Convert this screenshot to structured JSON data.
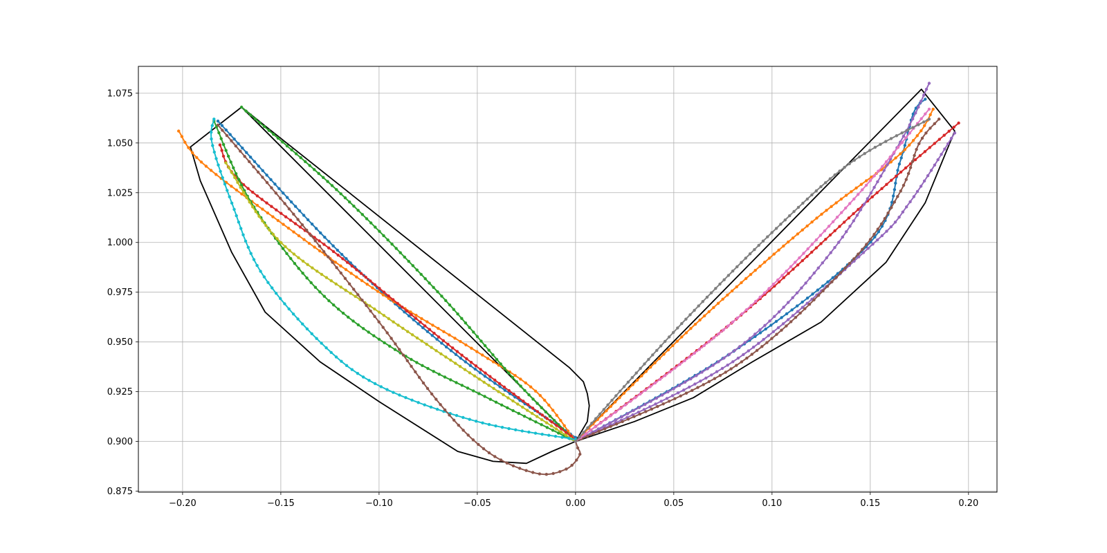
{
  "chart_data": {
    "type": "line",
    "title": "",
    "xlabel": "",
    "ylabel": "",
    "xlim": [
      -0.2225,
      0.2145
    ],
    "ylim": [
      0.8745,
      1.0885
    ],
    "grid": true,
    "legend": "none",
    "x_ticks": [
      -0.2,
      -0.15,
      -0.1,
      -0.05,
      0.0,
      0.05,
      0.1,
      0.15,
      0.2
    ],
    "x_tick_labels": [
      "−0.20",
      "−0.15",
      "−0.10",
      "−0.05",
      "0.00",
      "0.05",
      "0.10",
      "0.15",
      "0.20"
    ],
    "y_ticks": [
      0.875,
      0.9,
      0.925,
      0.95,
      0.975,
      1.0,
      1.025,
      1.05,
      1.075
    ],
    "y_tick_labels": [
      "0.875",
      "0.900",
      "0.925",
      "0.950",
      "0.975",
      "1.000",
      "1.025",
      "1.050",
      "1.075"
    ],
    "envelopes": [
      {
        "color": "#000000",
        "points": [
          [
            0.0,
            0.9
          ],
          [
            -0.17,
            1.068
          ],
          [
            -0.196,
            1.048
          ],
          [
            -0.191,
            1.031
          ],
          [
            -0.175,
            0.995
          ],
          [
            -0.158,
            0.965
          ],
          [
            -0.13,
            0.94
          ],
          [
            -0.1,
            0.92
          ],
          [
            -0.06,
            0.895
          ],
          [
            -0.042,
            0.89
          ],
          [
            -0.025,
            0.889
          ],
          [
            -0.012,
            0.895
          ],
          [
            0.0,
            0.9
          ],
          [
            0.006,
            0.91
          ],
          [
            0.007,
            0.918
          ],
          [
            0.006,
            0.924
          ],
          [
            0.004,
            0.93
          ],
          [
            -0.003,
            0.937
          ],
          [
            -0.17,
            1.068
          ]
        ]
      },
      {
        "color": "#000000",
        "points": [
          [
            0.0,
            0.9
          ],
          [
            0.176,
            1.077
          ],
          [
            0.193,
            1.056
          ],
          [
            0.178,
            1.02
          ],
          [
            0.158,
            0.99
          ],
          [
            0.125,
            0.96
          ],
          [
            0.09,
            0.94
          ],
          [
            0.06,
            0.922
          ],
          [
            0.03,
            0.91
          ],
          [
            0.0,
            0.9
          ]
        ]
      }
    ],
    "series": [
      {
        "color": "#1f77b4",
        "points": [
          [
            -0.182,
            1.061
          ],
          [
            -0.12,
            0.995
          ],
          [
            -0.06,
            0.943
          ],
          [
            0.0,
            0.902
          ]
        ],
        "marker_count": 80
      },
      {
        "color": "#ff7f0e",
        "points": [
          [
            -0.202,
            1.056
          ],
          [
            -0.19,
            1.04
          ],
          [
            -0.15,
            1.01
          ],
          [
            -0.1,
            0.975
          ],
          [
            -0.05,
            0.945
          ],
          [
            -0.02,
            0.925
          ],
          [
            0.0,
            0.9
          ]
        ],
        "marker_count": 80
      },
      {
        "color": "#2ca02c",
        "points": [
          [
            -0.17,
            1.068
          ],
          [
            -0.12,
            1.025
          ],
          [
            -0.07,
            0.975
          ],
          [
            -0.03,
            0.93
          ],
          [
            0.0,
            0.9
          ]
        ],
        "marker_count": 80
      },
      {
        "color": "#d62728",
        "points": [
          [
            -0.181,
            1.049
          ],
          [
            -0.17,
            1.03
          ],
          [
            -0.12,
            0.993
          ],
          [
            -0.06,
            0.945
          ],
          [
            0.0,
            0.901
          ]
        ],
        "marker_count": 80
      },
      {
        "color": "#2ca02c",
        "points": [
          [
            -0.184,
            1.061
          ],
          [
            -0.165,
            1.02
          ],
          [
            -0.13,
            0.975
          ],
          [
            -0.09,
            0.945
          ],
          [
            -0.045,
            0.922
          ],
          [
            0.0,
            0.9
          ]
        ],
        "marker_count": 80
      },
      {
        "color": "#bcbd22",
        "points": [
          [
            -0.178,
            1.04
          ],
          [
            -0.15,
            1.0
          ],
          [
            -0.1,
            0.965
          ],
          [
            -0.05,
            0.932
          ],
          [
            0.0,
            0.9
          ]
        ],
        "marker_count": 80
      },
      {
        "color": "#17becf",
        "points": [
          [
            -0.184,
            1.062
          ],
          [
            -0.185,
            1.05
          ],
          [
            -0.175,
            1.02
          ],
          [
            -0.16,
            0.985
          ],
          [
            -0.13,
            0.95
          ],
          [
            -0.1,
            0.928
          ],
          [
            -0.05,
            0.91
          ],
          [
            0.0,
            0.901
          ]
        ],
        "marker_count": 80
      },
      {
        "color": "#8c564b",
        "points": [
          [
            -0.182,
            1.059
          ],
          [
            -0.14,
            1.01
          ],
          [
            -0.1,
            0.96
          ],
          [
            -0.07,
            0.92
          ],
          [
            -0.045,
            0.895
          ],
          [
            -0.02,
            0.884
          ],
          [
            -0.005,
            0.886
          ],
          [
            0.002,
            0.893
          ],
          [
            0.001,
            0.897
          ],
          [
            0.0,
            0.9
          ]
        ],
        "marker_count": 80
      },
      {
        "color": "#1f77b4",
        "points": [
          [
            0.0,
            0.9
          ],
          [
            0.08,
            0.945
          ],
          [
            0.15,
            1.0
          ],
          [
            0.165,
            1.04
          ],
          [
            0.172,
            1.065
          ],
          [
            0.178,
            1.072
          ]
        ],
        "marker_count": 80
      },
      {
        "color": "#ff7f0e",
        "points": [
          [
            0.0,
            0.9
          ],
          [
            0.06,
            0.958
          ],
          [
            0.12,
            1.01
          ],
          [
            0.16,
            1.04
          ],
          [
            0.175,
            1.055
          ],
          [
            0.182,
            1.067
          ]
        ],
        "marker_count": 80
      },
      {
        "color": "#d62728",
        "points": [
          [
            0.0,
            0.9
          ],
          [
            0.08,
            0.96
          ],
          [
            0.15,
            1.022
          ],
          [
            0.195,
            1.06
          ]
        ],
        "marker_count": 80
      },
      {
        "color": "#9467bd",
        "points": [
          [
            0.0,
            0.9
          ],
          [
            0.08,
            0.945
          ],
          [
            0.13,
            0.995
          ],
          [
            0.165,
            1.05
          ],
          [
            0.18,
            1.08
          ]
        ],
        "marker_count": 80
      },
      {
        "color": "#9467bd",
        "points": [
          [
            0.0,
            0.9
          ],
          [
            0.08,
            0.94
          ],
          [
            0.15,
            0.998
          ],
          [
            0.17,
            1.02
          ],
          [
            0.193,
            1.055
          ]
        ],
        "marker_count": 80
      },
      {
        "color": "#8c564b",
        "points": [
          [
            0.0,
            0.9
          ],
          [
            0.08,
            0.937
          ],
          [
            0.14,
            0.99
          ],
          [
            0.165,
            1.025
          ],
          [
            0.175,
            1.05
          ],
          [
            0.185,
            1.062
          ]
        ],
        "marker_count": 80
      },
      {
        "color": "#e377c2",
        "points": [
          [
            0.0,
            0.9
          ],
          [
            0.08,
            0.96
          ],
          [
            0.14,
            1.02
          ],
          [
            0.18,
            1.067
          ]
        ],
        "marker_count": 80
      },
      {
        "color": "#7f7f7f",
        "points": [
          [
            0.0,
            0.9
          ],
          [
            0.05,
            0.955
          ],
          [
            0.1,
            1.005
          ],
          [
            0.14,
            1.04
          ],
          [
            0.18,
            1.062
          ]
        ],
        "marker_count": 80
      }
    ]
  }
}
